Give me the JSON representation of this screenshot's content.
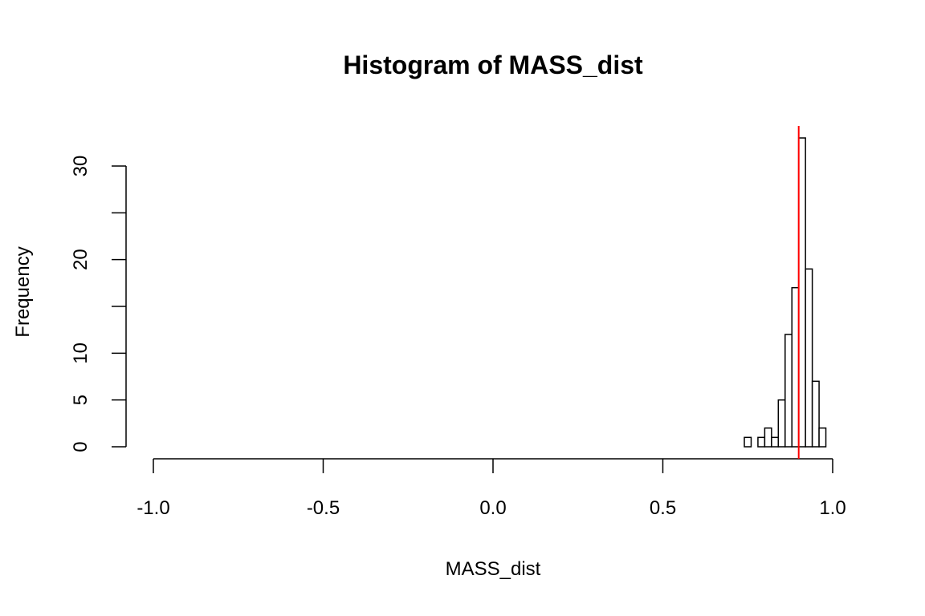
{
  "chart_data": {
    "type": "bar",
    "title": "Histogram of MASS_dist",
    "xlabel": "MASS_dist",
    "ylabel": "Frequency",
    "xlim": [
      -1.0,
      1.0
    ],
    "ylim": [
      0,
      33
    ],
    "x_ticks": [
      -1.0,
      -0.5,
      0.0,
      0.5,
      1.0
    ],
    "x_tick_labels": [
      "-1.0",
      "-0.5",
      "0.0",
      "0.5",
      "1.0"
    ],
    "y_ticks": [
      0,
      5,
      10,
      15,
      20,
      25,
      30
    ],
    "y_tick_labels": [
      "0",
      "5",
      "10",
      "",
      "20",
      "",
      "30"
    ],
    "bin_width": 0.02,
    "bins": [
      {
        "x0": 0.74,
        "x1": 0.76,
        "count": 1
      },
      {
        "x0": 0.76,
        "x1": 0.78,
        "count": 0
      },
      {
        "x0": 0.78,
        "x1": 0.8,
        "count": 1
      },
      {
        "x0": 0.8,
        "x1": 0.82,
        "count": 2
      },
      {
        "x0": 0.82,
        "x1": 0.84,
        "count": 1
      },
      {
        "x0": 0.84,
        "x1": 0.86,
        "count": 5
      },
      {
        "x0": 0.86,
        "x1": 0.88,
        "count": 12
      },
      {
        "x0": 0.88,
        "x1": 0.9,
        "count": 17
      },
      {
        "x0": 0.9,
        "x1": 0.92,
        "count": 33
      },
      {
        "x0": 0.92,
        "x1": 0.94,
        "count": 19
      },
      {
        "x0": 0.94,
        "x1": 0.96,
        "count": 7
      },
      {
        "x0": 0.96,
        "x1": 0.98,
        "count": 2
      }
    ],
    "reference_line": {
      "x": 0.9,
      "color": "#ff0000"
    },
    "grid": false,
    "legend": "none"
  }
}
